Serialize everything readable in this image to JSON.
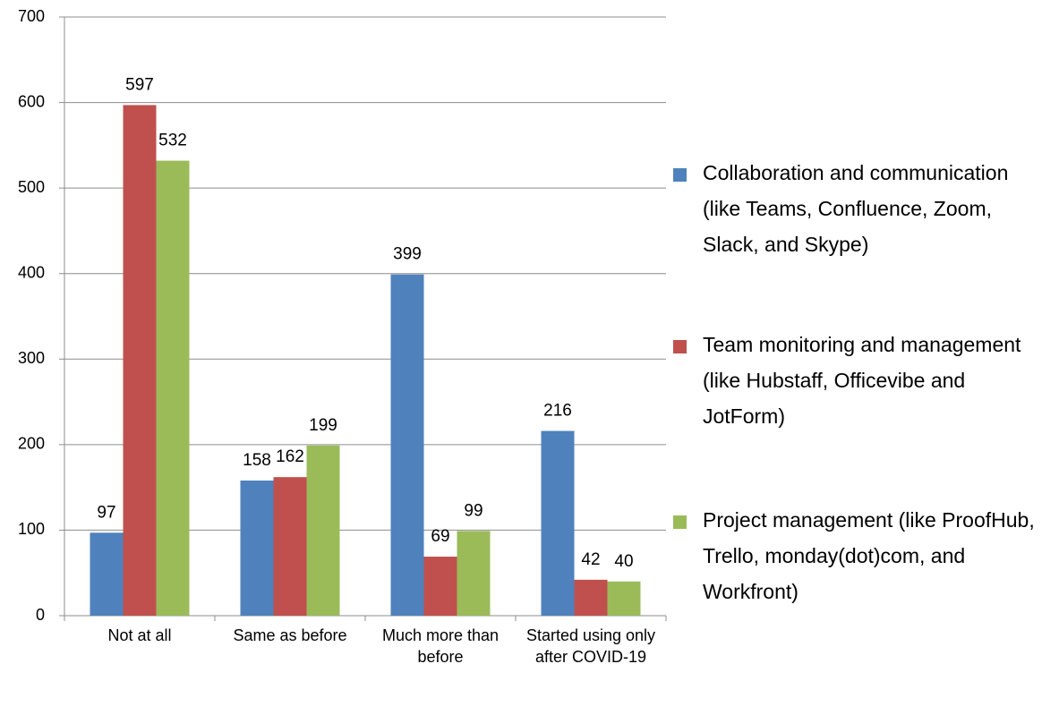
{
  "chart_data": {
    "type": "bar",
    "categories": [
      "Not at all",
      "Same as before",
      "Much more than before",
      "Started using only after COVID-19"
    ],
    "series": [
      {
        "name": "Collaboration and communication (like Teams, Confluence, Zoom, Slack, and Skype)",
        "color": "#4f81bd",
        "values": [
          97,
          158,
          399,
          216
        ]
      },
      {
        "name": "Team monitoring and management (like Hubstaff, Officevibe and JotForm)",
        "color": "#c0504d",
        "values": [
          597,
          162,
          69,
          42
        ]
      },
      {
        "name": "Project management (like ProofHub, Trello, monday(dot)com, and Workfront)",
        "color": "#9bbb59",
        "values": [
          532,
          199,
          99,
          40
        ]
      }
    ],
    "ylim": [
      0,
      700
    ],
    "yticks": [
      0,
      100,
      200,
      300,
      400,
      500,
      600,
      700
    ],
    "grid": true,
    "legend": "right"
  }
}
